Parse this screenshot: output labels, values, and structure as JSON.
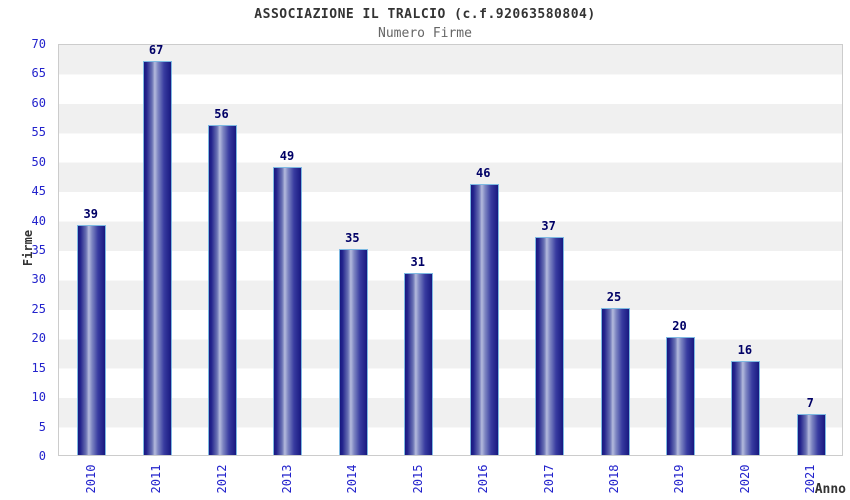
{
  "header": {
    "title": "ASSOCIAZIONE IL TRALCIO (c.f.92063580804)",
    "subtitle": "Numero Firme"
  },
  "chart_data": {
    "type": "bar",
    "title": "ASSOCIAZIONE IL TRALCIO (c.f.92063580804)",
    "subtitle": "Numero Firme",
    "categories": [
      "2010",
      "2011",
      "2012",
      "2013",
      "2014",
      "2015",
      "2016",
      "2017",
      "2018",
      "2019",
      "2020",
      "2021"
    ],
    "values": [
      39,
      67,
      56,
      49,
      35,
      31,
      46,
      37,
      25,
      20,
      16,
      7
    ],
    "xlabel": "Anno",
    "ylabel": "Firme",
    "ylim": [
      0,
      70
    ],
    "ytick_step": 5,
    "yticks": [
      0,
      5,
      10,
      15,
      20,
      25,
      30,
      35,
      40,
      45,
      50,
      55,
      60,
      65,
      70
    ],
    "grid": "alternating-horizontal-bands",
    "legend_position": "none",
    "colors": {
      "band_gray": "#f0f0f0",
      "band_white": "#ffffff",
      "plot_border": "#cccccc",
      "bar_edge_dark": "#181880",
      "bar_mid": "#7e86c2",
      "bar_highlight": "#b4badd",
      "bar_outline": "#7db9e2",
      "tick_label": "#2323cc",
      "value_label": "#000066",
      "axis_title": "#333333",
      "title": "#333333",
      "subtitle": "#666666"
    }
  }
}
